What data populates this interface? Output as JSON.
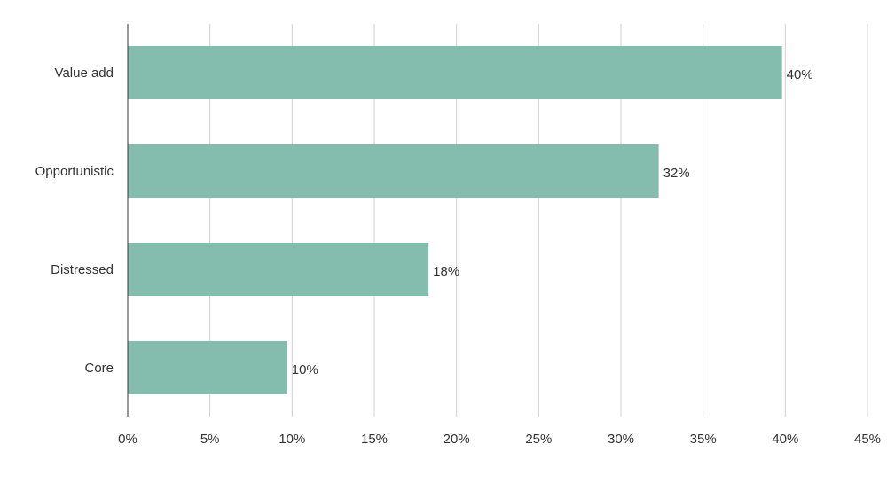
{
  "chart_data": {
    "type": "bar",
    "orientation": "horizontal",
    "categories": [
      "Value add",
      "Opportunistic",
      "Distressed",
      "Core"
    ],
    "values": [
      39.8,
      32.3,
      18.3,
      9.7
    ],
    "data_labels": [
      "40%",
      "32%",
      "18%",
      "10%"
    ],
    "xlim": [
      0,
      45
    ],
    "x_ticks": [
      0,
      5,
      10,
      15,
      20,
      25,
      30,
      35,
      40,
      45
    ],
    "x_tick_labels": [
      "0%",
      "5%",
      "10%",
      "15%",
      "20%",
      "25%",
      "30%",
      "35%",
      "40%",
      "45%"
    ],
    "title": "",
    "xlabel": "",
    "ylabel": "",
    "grid": "vertical",
    "legend": "none",
    "bar_color": "#84bcad",
    "text_color": "#333333",
    "grid_color": "#d0d0d0"
  }
}
